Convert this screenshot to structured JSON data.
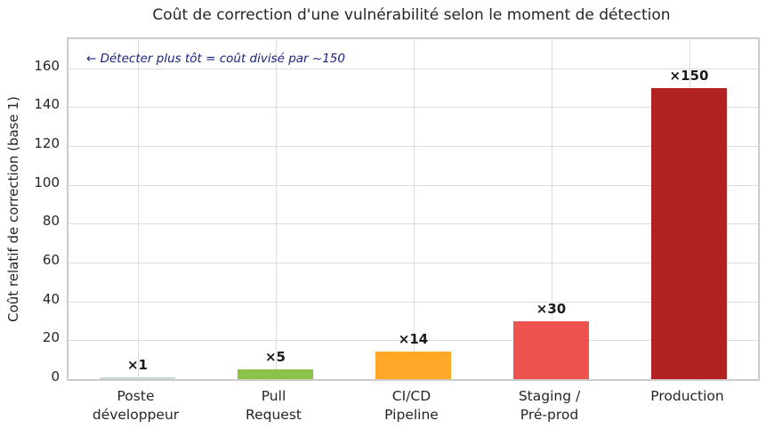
{
  "chart_data": {
    "type": "bar",
    "title": "Coût de correction d'une vulnérabilité selon le moment de détection",
    "xlabel": "",
    "ylabel": "Coût relatif de correction (base 1)",
    "categories": [
      "Poste\ndéveloppeur",
      "Pull\nRequest",
      "CI/CD\nPipeline",
      "Staging /\nPré-prod",
      "Production"
    ],
    "values": [
      1,
      5,
      14,
      30,
      150
    ],
    "bar_labels": [
      "×1",
      "×5",
      "×14",
      "×30",
      "×150"
    ],
    "bar_colors": [
      "#c8d8c8",
      "#8bc34a",
      "#ffa726",
      "#ef5350",
      "#b22222"
    ],
    "yticks": [
      0,
      20,
      40,
      60,
      80,
      100,
      120,
      140,
      160
    ],
    "ylim": [
      0,
      175
    ],
    "grid": true,
    "legend": null,
    "annotation": {
      "text": "← Détecter plus tôt = coût divisé par ~150",
      "color": "#1a237e"
    }
  },
  "style": {
    "grid_color": "#dcdcdc",
    "spine_color": "#cccccc",
    "text_color": "#262626"
  }
}
